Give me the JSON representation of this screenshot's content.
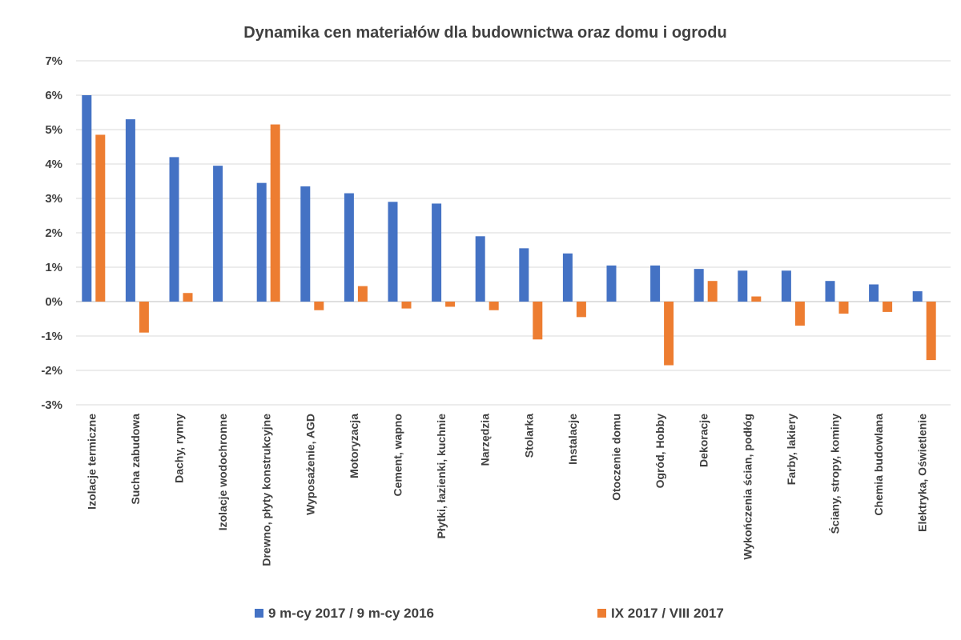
{
  "chart_data": {
    "type": "bar",
    "title": "Dynamika cen materiałów dla budownictwa oraz domu i ogrodu",
    "categories": [
      "Izolacje termiczne",
      "Sucha zabudowa",
      "Dachy, rynny",
      "Izolacje wodochronne",
      "Drewno, płyty konstrukcyjne",
      "Wyposażenie, AGD",
      "Motoryzacja",
      "Cement, wapno",
      "Płytki, łazienki, kuchnie",
      "Narzędzia",
      "Stolarka",
      "Instalacje",
      "Otoczenie domu",
      "Ogród, Hobby",
      "Dekoracje",
      "Wykończenia ścian, podłóg",
      "Farby, lakiery",
      "Ściany, stropy, kominy",
      "Chemia budowlana",
      "Elektryka, Oświetlenie"
    ],
    "series": [
      {
        "name": "9 m-cy 2017 / 9 m-cy 2016",
        "color": "#4472C4",
        "values": [
          6.0,
          5.3,
          4.2,
          3.95,
          3.45,
          3.35,
          3.15,
          2.9,
          2.85,
          1.9,
          1.55,
          1.4,
          1.05,
          1.05,
          0.95,
          0.9,
          0.9,
          0.6,
          0.5,
          0.3
        ]
      },
      {
        "name": "IX 2017 / VIII 2017",
        "color": "#ED7D31",
        "values": [
          4.85,
          -0.9,
          0.25,
          0.0,
          5.15,
          -0.25,
          0.45,
          -0.2,
          -0.15,
          -0.25,
          -1.1,
          -0.45,
          0.0,
          -1.85,
          0.6,
          0.15,
          -0.7,
          -0.35,
          -0.3,
          -1.7
        ]
      }
    ],
    "yticks": [
      "7%",
      "6%",
      "5%",
      "4%",
      "3%",
      "2%",
      "1%",
      "0%",
      "-1%",
      "-2%",
      "-3%"
    ],
    "ylim": [
      -3,
      7
    ],
    "xlabel": "",
    "ylabel": "",
    "grid": true,
    "legend_position": "bottom"
  }
}
